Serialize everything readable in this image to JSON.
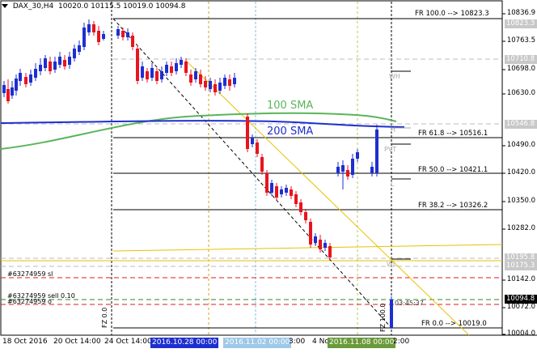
{
  "header": {
    "symbol": "DAX_30,H4",
    "ohlc": "10020.0 10115.5 10019.0 10094.8"
  },
  "price_axis": {
    "labels": [
      "10836.9",
      "10763.5",
      "10698.0",
      "10630.0",
      "10490.0",
      "10420.0",
      "10350.0",
      "10282.0",
      "10142.0",
      "10072.0",
      "10004.0"
    ],
    "boxes": [
      {
        "value": "10823.3",
        "color": "#c8c8c8"
      },
      {
        "value": "10710.8",
        "color": "#c8c8c8"
      },
      {
        "value": "10546.8",
        "color": "#c8c8c8"
      },
      {
        "value": "10195.8",
        "color": "#c8c8c8"
      },
      {
        "value": "10175.3",
        "color": "#c8c8c8"
      },
      {
        "value": "10094.8",
        "color": "#000000"
      }
    ]
  },
  "time_axis": {
    "labels": [
      "18 Oct 2016",
      "20 Oct 14:00",
      "24 Oct 14:00",
      "3:00",
      "4 No",
      "2:00"
    ],
    "highlights": [
      "2016.10.28 00:00",
      "2016.11.02 00:00",
      "2016.11.08 00:00"
    ]
  },
  "fibo": [
    {
      "label": "FR   100.0   --> 10823.3"
    },
    {
      "label": "FR   61.8   --> 10516.1"
    },
    {
      "label": "FR   50.0   --> 10421.1"
    },
    {
      "label": "FR   38.2   --> 10326.2"
    },
    {
      "label": "FR   0.0   --> 10019.0"
    }
  ],
  "sma": {
    "sma100": "100 SMA",
    "sma200": "200 SMA",
    "sma100_color": "#5ab55a",
    "sma200_color": "#1e2fd0"
  },
  "pivots": {
    "h": "H",
    "pvt": "PVT",
    "l": "L",
    "wl": "WL"
  },
  "orders": {
    "sl": "#63274959 sl",
    "sell": "#63274959 sell 0.10",
    "open": "#63274959 o"
  },
  "countdown": "03:45:37",
  "fz_labels": [
    "FZ  0.0",
    "FZ  100.0"
  ],
  "colors": {
    "bull": "#1e2fd0",
    "bear": "#e8141e",
    "grid": "#aaaaaa"
  }
}
